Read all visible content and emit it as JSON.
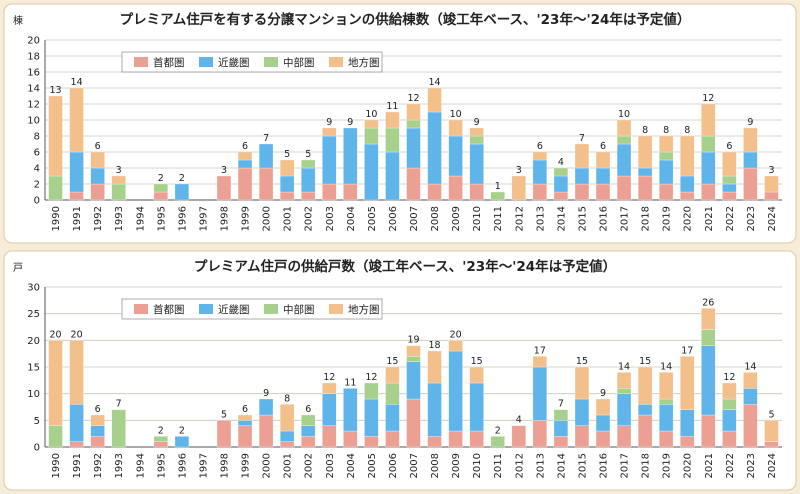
{
  "colors": {
    "background": "#f6ecd7",
    "panel": "#ffffff",
    "capital": "#ec9f93",
    "kinki": "#5fb4ea",
    "chubu": "#a8d08d",
    "regional": "#f3bf8a",
    "grid": "#ccc6b8"
  },
  "chart_data": [
    {
      "type": "bar",
      "stacked": true,
      "title": "プレミアム住戸を有する分譲マンションの供給棟数（竣工年ベース、'23年～'24年は予定値）",
      "ylabel": "棟",
      "xlabel": "",
      "ylim": [
        0,
        20
      ],
      "yticks": [
        0,
        2,
        4,
        6,
        8,
        10,
        12,
        14,
        16,
        18,
        20
      ],
      "grid": true,
      "legend_position": "top-center",
      "categories": [
        "1990",
        "1991",
        "1992",
        "1993",
        "1994",
        "1995",
        "1996",
        "1997",
        "1998",
        "1999",
        "2000",
        "2001",
        "2002",
        "2003",
        "2004",
        "2005",
        "2006",
        "2007",
        "2008",
        "2009",
        "2010",
        "2011",
        "2012",
        "2013",
        "2014",
        "2015",
        "2016",
        "2017",
        "2018",
        "2019",
        "2020",
        "2021",
        "2022",
        "2023",
        "2024"
      ],
      "series": [
        {
          "name": "首都圏",
          "color_key": "capital",
          "values": [
            0,
            1,
            2,
            0,
            0,
            1,
            0,
            0,
            3,
            4,
            4,
            1,
            1,
            2,
            2,
            0,
            0,
            4,
            2,
            3,
            2,
            0,
            0,
            2,
            1,
            2,
            2,
            3,
            3,
            2,
            1,
            2,
            1,
            4,
            1
          ]
        },
        {
          "name": "近畿圏",
          "color_key": "kinki",
          "values": [
            0,
            5,
            2,
            0,
            0,
            0,
            2,
            0,
            0,
            1,
            3,
            2,
            3,
            6,
            7,
            7,
            6,
            5,
            9,
            5,
            5,
            0,
            0,
            3,
            2,
            2,
            2,
            4,
            1,
            3,
            2,
            4,
            1,
            2,
            0
          ]
        },
        {
          "name": "中部圏",
          "color_key": "chubu",
          "values": [
            3,
            0,
            0,
            2,
            0,
            1,
            0,
            0,
            0,
            0,
            0,
            0,
            1,
            0,
            0,
            2,
            3,
            1,
            0,
            0,
            1,
            1,
            0,
            0,
            1,
            0,
            0,
            1,
            0,
            1,
            0,
            2,
            1,
            0,
            0
          ]
        },
        {
          "name": "地方圏",
          "color_key": "regional",
          "values": [
            10,
            8,
            2,
            1,
            0,
            0,
            0,
            0,
            0,
            1,
            0,
            2,
            0,
            1,
            0,
            1,
            2,
            2,
            3,
            2,
            1,
            0,
            3,
            1,
            0,
            3,
            2,
            2,
            4,
            2,
            5,
            4,
            3,
            3,
            2
          ]
        }
      ],
      "totals": [
        13,
        14,
        6,
        3,
        0,
        2,
        2,
        0,
        3,
        6,
        7,
        5,
        5,
        9,
        9,
        10,
        11,
        12,
        14,
        10,
        9,
        1,
        3,
        6,
        4,
        7,
        6,
        10,
        8,
        8,
        8,
        12,
        6,
        9,
        3
      ],
      "total_labels": [
        "13",
        "14",
        "6",
        "3",
        "",
        "2",
        "2",
        "",
        "3",
        "6",
        "7",
        "5",
        "5",
        "9",
        "9",
        "10",
        "11",
        "12",
        "14",
        "10",
        "9",
        "1",
        "3",
        "6",
        "4",
        "7",
        "6",
        "10",
        "8",
        "8",
        "8",
        "12",
        "6",
        "9",
        "3"
      ]
    },
    {
      "type": "bar",
      "stacked": true,
      "title": "プレミアム住戸の供給戸数（竣工年ベース、'23年～'24年は予定値）",
      "ylabel": "戸",
      "xlabel": "",
      "ylim": [
        0,
        30
      ],
      "yticks": [
        0,
        5,
        10,
        15,
        20,
        25,
        30
      ],
      "grid": true,
      "legend_position": "top-center",
      "categories": [
        "1990",
        "1991",
        "1992",
        "1993",
        "1994",
        "1995",
        "1996",
        "1997",
        "1998",
        "1999",
        "2000",
        "2001",
        "2002",
        "2003",
        "2004",
        "2005",
        "2006",
        "2007",
        "2008",
        "2009",
        "2010",
        "2011",
        "2012",
        "2013",
        "2014",
        "2015",
        "2016",
        "2017",
        "2018",
        "2019",
        "2020",
        "2021",
        "2022",
        "2023",
        "2024"
      ],
      "series": [
        {
          "name": "首都圏",
          "color_key": "capital",
          "values": [
            0,
            1,
            2,
            0,
            0,
            1,
            0,
            0,
            5,
            4,
            6,
            1,
            2,
            4,
            3,
            2,
            3,
            9,
            2,
            3,
            3,
            0,
            4,
            5,
            2,
            4,
            3,
            4,
            6,
            3,
            2,
            6,
            3,
            8,
            1
          ]
        },
        {
          "name": "近畿圏",
          "color_key": "kinki",
          "values": [
            0,
            7,
            2,
            0,
            0,
            0,
            2,
            0,
            0,
            1,
            3,
            2,
            2,
            6,
            8,
            7,
            5,
            7,
            10,
            15,
            9,
            0,
            0,
            10,
            3,
            5,
            3,
            6,
            2,
            5,
            5,
            13,
            4,
            3,
            0
          ]
        },
        {
          "name": "中部圏",
          "color_key": "chubu",
          "values": [
            4,
            0,
            0,
            7,
            0,
            1,
            0,
            0,
            0,
            0,
            0,
            0,
            2,
            0,
            0,
            3,
            4,
            1,
            0,
            0,
            0,
            2,
            0,
            0,
            2,
            0,
            0,
            1,
            0,
            1,
            0,
            3,
            2,
            0,
            0
          ]
        },
        {
          "name": "地方圏",
          "color_key": "regional",
          "values": [
            16,
            12,
            2,
            0,
            0,
            0,
            0,
            0,
            0,
            1,
            0,
            5,
            0,
            2,
            0,
            0,
            3,
            2,
            6,
            2,
            3,
            0,
            0,
            2,
            0,
            6,
            3,
            3,
            7,
            5,
            10,
            4,
            3,
            3,
            4
          ]
        }
      ],
      "totals": [
        20,
        20,
        6,
        7,
        0,
        2,
        2,
        0,
        5,
        6,
        9,
        8,
        6,
        12,
        11,
        12,
        15,
        19,
        18,
        20,
        15,
        2,
        4,
        17,
        7,
        15,
        9,
        14,
        15,
        14,
        17,
        26,
        12,
        14,
        5
      ],
      "total_labels": [
        "20",
        "20",
        "6",
        "7",
        "",
        "2",
        "2",
        "",
        "5",
        "6",
        "9",
        "8",
        "6",
        "12",
        "11",
        "12",
        "15",
        "19",
        "18",
        "20",
        "15",
        "2",
        "4",
        "17",
        "7",
        "15",
        "9",
        "14",
        "15",
        "14",
        "17",
        "26",
        "12",
        "14",
        "5"
      ]
    }
  ]
}
